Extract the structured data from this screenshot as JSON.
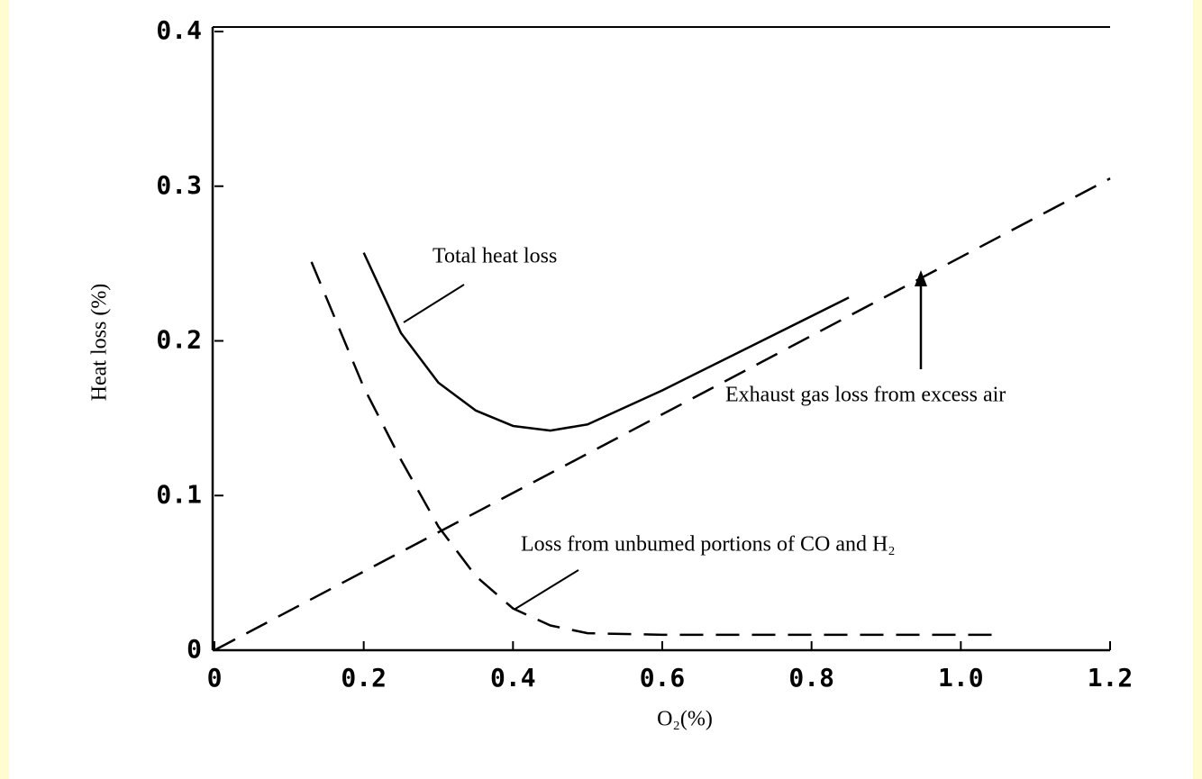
{
  "chart_data": {
    "type": "line",
    "xlabel": "O₂(%)",
    "ylabel": "Heat loss (%)",
    "xlim": [
      0,
      1.2
    ],
    "ylim": [
      0,
      0.4
    ],
    "xticks": [
      0,
      0.2,
      0.4,
      0.6,
      0.8,
      {
        "value": 1,
        "label": "1.0"
      },
      1.2
    ],
    "yticks": [
      0,
      0.1,
      0.2,
      0.3,
      0.4
    ],
    "series": [
      {
        "name": "Total heat loss",
        "color": "#000000",
        "style": "solid",
        "x": [
          0.2,
          0.25,
          0.3,
          0.35,
          0.4,
          0.45,
          0.5,
          0.6,
          0.7,
          0.85
        ],
        "values": [
          0.257,
          0.205,
          0.173,
          0.155,
          0.145,
          0.142,
          0.146,
          0.168,
          0.192,
          0.228
        ]
      },
      {
        "name": "Exhaust gas loss from excess air",
        "color": "#000000",
        "style": "dashed",
        "x": [
          0,
          1.2
        ],
        "values": [
          0,
          0.305
        ]
      },
      {
        "name": "Loss from unbumed portions of CO and H₂",
        "color": "#000000",
        "style": "dashed",
        "x": [
          0.13,
          0.2,
          0.25,
          0.3,
          0.35,
          0.4,
          0.45,
          0.5,
          0.6,
          1.05
        ],
        "values": [
          0.251,
          0.17,
          0.123,
          0.08,
          0.048,
          0.027,
          0.016,
          0.011,
          0.01,
          0.01
        ]
      }
    ]
  }
}
